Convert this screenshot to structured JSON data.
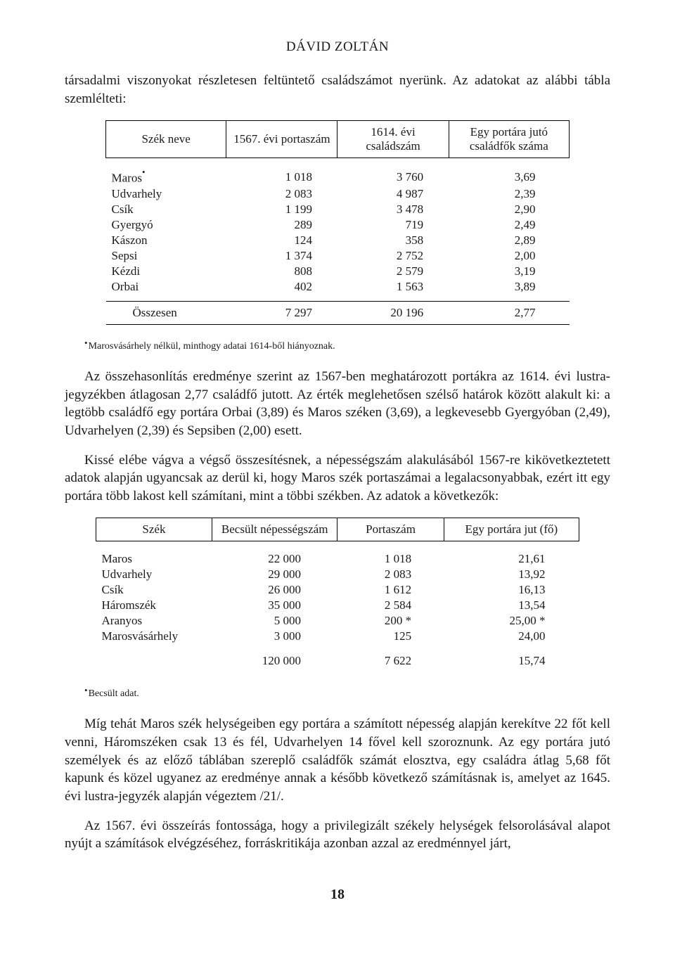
{
  "author": "DÁVID ZOLTÁN",
  "intro_para": "társadalmi viszonyokat részletesen feltüntető családszámot nyerünk. Az adatokat az alábbi tábla szemlélteti:",
  "table1": {
    "headers": [
      "Szék neve",
      "1567. évi portaszám",
      "1614. évi családszám",
      "Egy portára jutó családfők száma"
    ],
    "rows": [
      {
        "name": "Maros",
        "star": true,
        "c1": "1 018",
        "c2": "3 760",
        "c3": "3,69"
      },
      {
        "name": "Udvarhely",
        "star": false,
        "c1": "2 083",
        "c2": "4 987",
        "c3": "2,39"
      },
      {
        "name": "Csík",
        "star": false,
        "c1": "1 199",
        "c2": "3 478",
        "c3": "2,90"
      },
      {
        "name": "Gyergyó",
        "star": false,
        "c1": "289",
        "c2": "719",
        "c3": "2,49"
      },
      {
        "name": "Kászon",
        "star": false,
        "c1": "124",
        "c2": "358",
        "c3": "2,89"
      },
      {
        "name": "Sepsi",
        "star": false,
        "c1": "1 374",
        "c2": "2 752",
        "c3": "2,00"
      },
      {
        "name": "Kézdi",
        "star": false,
        "c1": "808",
        "c2": "2 579",
        "c3": "3,19"
      },
      {
        "name": "Orbai",
        "star": false,
        "c1": "402",
        "c2": "1 563",
        "c3": "3,89"
      }
    ],
    "total": {
      "name": "Összesen",
      "c1": "7 297",
      "c2": "20 196",
      "c3": "2,77"
    }
  },
  "footnote1": "Marosvásárhely nélkül, minthogy adatai 1614-ből hiányoznak.",
  "para2": "Az összehasonlítás eredménye szerint az 1567-ben meghatározott portákra az 1614. évi lustra-jegyzékben átlagosan 2,77 családfő jutott. Az érték meglehetősen szélső határok között alakult ki: a legtöbb családfő egy portára Orbai (3,89) és Maros széken (3,69), a legkevesebb Gyergyóban (2,49), Udvarhelyen (2,39) és Sepsiben (2,00) esett.",
  "para3": "Kissé elébe vágva a végső összesítésnek, a népességszám alakulásából 1567-re kikövetkeztetett adatok alapján ugyancsak az derül ki, hogy Maros szék portaszámai a legalacsonyabbak, ezért itt egy portára több lakost kell számítani, mint a többi székben. Az adatok a következők:",
  "table2": {
    "headers": [
      "Szék",
      "Becsült népességszám",
      "Portaszám",
      "Egy portára jut (fő)"
    ],
    "rows": [
      {
        "name": "Maros",
        "c1": "22 000",
        "c2": "1 018",
        "c3": "21,61"
      },
      {
        "name": "Udvarhely",
        "c1": "29 000",
        "c2": "2 083",
        "c3": "13,92"
      },
      {
        "name": "Csík",
        "c1": "26 000",
        "c2": "1 612",
        "c3": "16,13"
      },
      {
        "name": "Háromszék",
        "c1": "35 000",
        "c2": "2 584",
        "c3": "13,54"
      },
      {
        "name": "Aranyos",
        "c1": "5 000",
        "c2": "200 *",
        "c3": "25,00 *"
      },
      {
        "name": "Marosvásárhely",
        "c1": "3 000",
        "c2": "125",
        "c3": "24,00"
      }
    ],
    "total": {
      "name": "",
      "c1": "120 000",
      "c2": "7 622",
      "c3": "15,74"
    }
  },
  "footnote2": "Becsült adat.",
  "para4": "Míg tehát Maros szék helységeiben egy portára a számított népesség alapján kerekítve 22 főt kell venni, Háromszéken csak 13 és fél, Udvarhelyen 14 fővel kell szoroznunk. Az egy portára jutó személyek és az előző táblában szereplő családfők számát elosztva, egy családra átlag 5,68 főt kapunk és közel ugyanez az eredménye annak a később következő számításnak is, amelyet az 1645. évi lustra-jegyzék alapján végeztem /21/.",
  "para5": "Az 1567. évi összeírás fontossága, hogy a privilegizált székely helységek felsorolásával alapot nyújt a számítások elvégzéséhez, forráskritikája azonban azzal az eredménnyel járt,",
  "page_number": "18"
}
